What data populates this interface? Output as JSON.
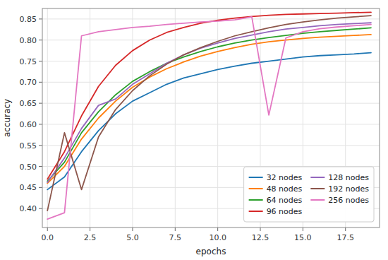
{
  "chart_data": {
    "type": "line",
    "xlabel": "epochs",
    "ylabel": "accuracy",
    "x": [
      0,
      1,
      2,
      3,
      4,
      5,
      6,
      7,
      8,
      9,
      10,
      11,
      12,
      13,
      14,
      15,
      16,
      17,
      18,
      19
    ],
    "series": [
      {
        "name": "32 nodes",
        "color": "#1f77b4",
        "values": [
          0.445,
          0.475,
          0.535,
          0.585,
          0.625,
          0.655,
          0.675,
          0.695,
          0.71,
          0.72,
          0.73,
          0.738,
          0.745,
          0.75,
          0.755,
          0.76,
          0.763,
          0.765,
          0.767,
          0.77
        ]
      },
      {
        "name": "48 nodes",
        "color": "#ff7f0e",
        "values": [
          0.46,
          0.5,
          0.565,
          0.615,
          0.655,
          0.688,
          0.712,
          0.732,
          0.748,
          0.762,
          0.773,
          0.782,
          0.79,
          0.796,
          0.8,
          0.804,
          0.807,
          0.809,
          0.811,
          0.813
        ]
      },
      {
        "name": "64 nodes",
        "color": "#2ca02c",
        "values": [
          0.465,
          0.51,
          0.58,
          0.63,
          0.67,
          0.702,
          0.725,
          0.745,
          0.76,
          0.773,
          0.784,
          0.793,
          0.8,
          0.806,
          0.811,
          0.816,
          0.82,
          0.823,
          0.826,
          0.829
        ]
      },
      {
        "name": "96 nodes",
        "color": "#d62728",
        "values": [
          0.47,
          0.535,
          0.62,
          0.69,
          0.74,
          0.775,
          0.8,
          0.818,
          0.83,
          0.84,
          0.847,
          0.852,
          0.856,
          0.859,
          0.861,
          0.862,
          0.863,
          0.864,
          0.865,
          0.866
        ]
      },
      {
        "name": "128 nodes",
        "color": "#9467bd",
        "values": [
          0.462,
          0.52,
          0.59,
          0.645,
          0.66,
          0.695,
          0.72,
          0.745,
          0.765,
          0.781,
          0.793,
          0.804,
          0.812,
          0.82,
          0.826,
          0.83,
          0.834,
          0.837,
          0.839,
          0.841
        ]
      },
      {
        "name": "192 nodes",
        "color": "#8c564b",
        "values": [
          0.395,
          0.58,
          0.445,
          0.57,
          0.635,
          0.68,
          0.715,
          0.743,
          0.765,
          0.782,
          0.797,
          0.81,
          0.82,
          0.829,
          0.837,
          0.843,
          0.848,
          0.852,
          0.855,
          0.858
        ]
      },
      {
        "name": "256 nodes",
        "color": "#e377c2",
        "values": [
          0.375,
          0.39,
          0.81,
          0.82,
          0.825,
          0.83,
          0.833,
          0.837,
          0.84,
          0.843,
          0.845,
          0.848,
          0.855,
          0.622,
          0.805,
          0.82,
          0.827,
          0.831,
          0.834,
          0.837
        ]
      }
    ],
    "xlim": [
      -0.3,
      19.5
    ],
    "ylim": [
      0.355,
      0.875
    ],
    "xticks": [
      {
        "value": 0.0,
        "label": "0.0"
      },
      {
        "value": 2.5,
        "label": "2.5"
      },
      {
        "value": 5.0,
        "label": "5.0"
      },
      {
        "value": 7.5,
        "label": "7.5"
      },
      {
        "value": 10.0,
        "label": "10.0"
      },
      {
        "value": 12.5,
        "label": "12.5"
      },
      {
        "value": 15.0,
        "label": "15.0"
      },
      {
        "value": 17.5,
        "label": "17.5"
      }
    ],
    "yticks": [
      {
        "value": 0.4,
        "label": "0.40"
      },
      {
        "value": 0.45,
        "label": "0.45"
      },
      {
        "value": 0.5,
        "label": "0.50"
      },
      {
        "value": 0.55,
        "label": "0.55"
      },
      {
        "value": 0.6,
        "label": "0.60"
      },
      {
        "value": 0.65,
        "label": "0.65"
      },
      {
        "value": 0.7,
        "label": "0.70"
      },
      {
        "value": 0.75,
        "label": "0.75"
      },
      {
        "value": 0.8,
        "label": "0.80"
      },
      {
        "value": 0.85,
        "label": "0.85"
      }
    ],
    "grid": true,
    "legend": "lower right"
  }
}
